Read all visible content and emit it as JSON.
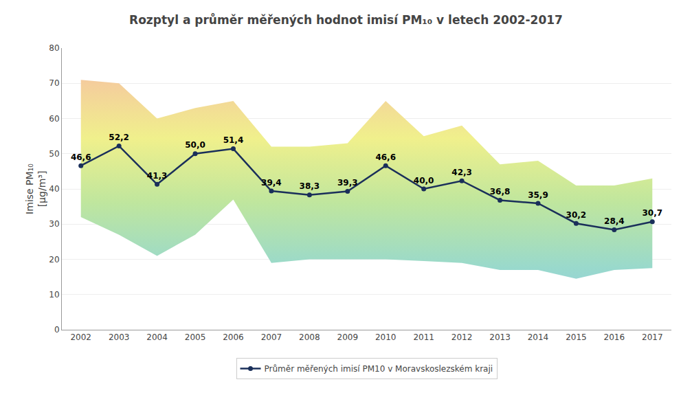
{
  "chart_data": {
    "type": "line",
    "title": "Rozptyl a průměr měřených hodnot imisí PM₁₀ v letech 2002-2017",
    "ylabel": "Imise PM₁₀\n[µg/m³]",
    "x": [
      2002,
      2003,
      2004,
      2005,
      2006,
      2007,
      2008,
      2009,
      2010,
      2011,
      2012,
      2013,
      2014,
      2015,
      2016,
      2017
    ],
    "series": [
      {
        "name": "Průměr měřených imisí PM10 v Moravskoslezském kraji",
        "color": "#1a2f5a",
        "marker": "circle",
        "line_style": "solid",
        "values": [
          46.6,
          52.2,
          41.3,
          50.0,
          51.4,
          39.4,
          38.3,
          39.3,
          46.6,
          40.0,
          42.3,
          36.8,
          35.9,
          30.2,
          28.4,
          30.7
        ],
        "value_labels": [
          "46,6",
          "52,2",
          "41,3",
          "50,0",
          "51,4",
          "39,4",
          "38,3",
          "39,3",
          "46,6",
          "40,0",
          "42,3",
          "36,8",
          "35,9",
          "30,2",
          "28,4",
          "30,7"
        ]
      }
    ],
    "max_values": [
      71.0,
      70.0,
      60.0,
      63.0,
      65.0,
      52.0,
      52.0,
      53.0,
      65.0,
      55.0,
      58.0,
      47.0,
      48.0,
      41.0,
      41.0,
      43.0
    ],
    "min_values": [
      32.0,
      27.0,
      21.0,
      27.0,
      37.0,
      19.0,
      20.0,
      20.0,
      20.0,
      19.5,
      19.0,
      17.0,
      17.0,
      14.5,
      17.0,
      17.5
    ],
    "band_colors": [
      "#94c7eb",
      "#99d9cc",
      "#bfe69e",
      "#f0f08c",
      "#f7b8a6"
    ],
    "xlim": [
      2001.5,
      2017.5
    ],
    "xticks": [
      2002,
      2003,
      2004,
      2005,
      2006,
      2007,
      2008,
      2009,
      2010,
      2011,
      2012,
      2013,
      2014,
      2015,
      2016,
      2017
    ],
    "ylim": [
      0,
      80
    ],
    "yticks": [
      0,
      10,
      20,
      30,
      40,
      50,
      60,
      70,
      80
    ],
    "grid": "y",
    "data_labels": true,
    "legend": "bottom"
  }
}
